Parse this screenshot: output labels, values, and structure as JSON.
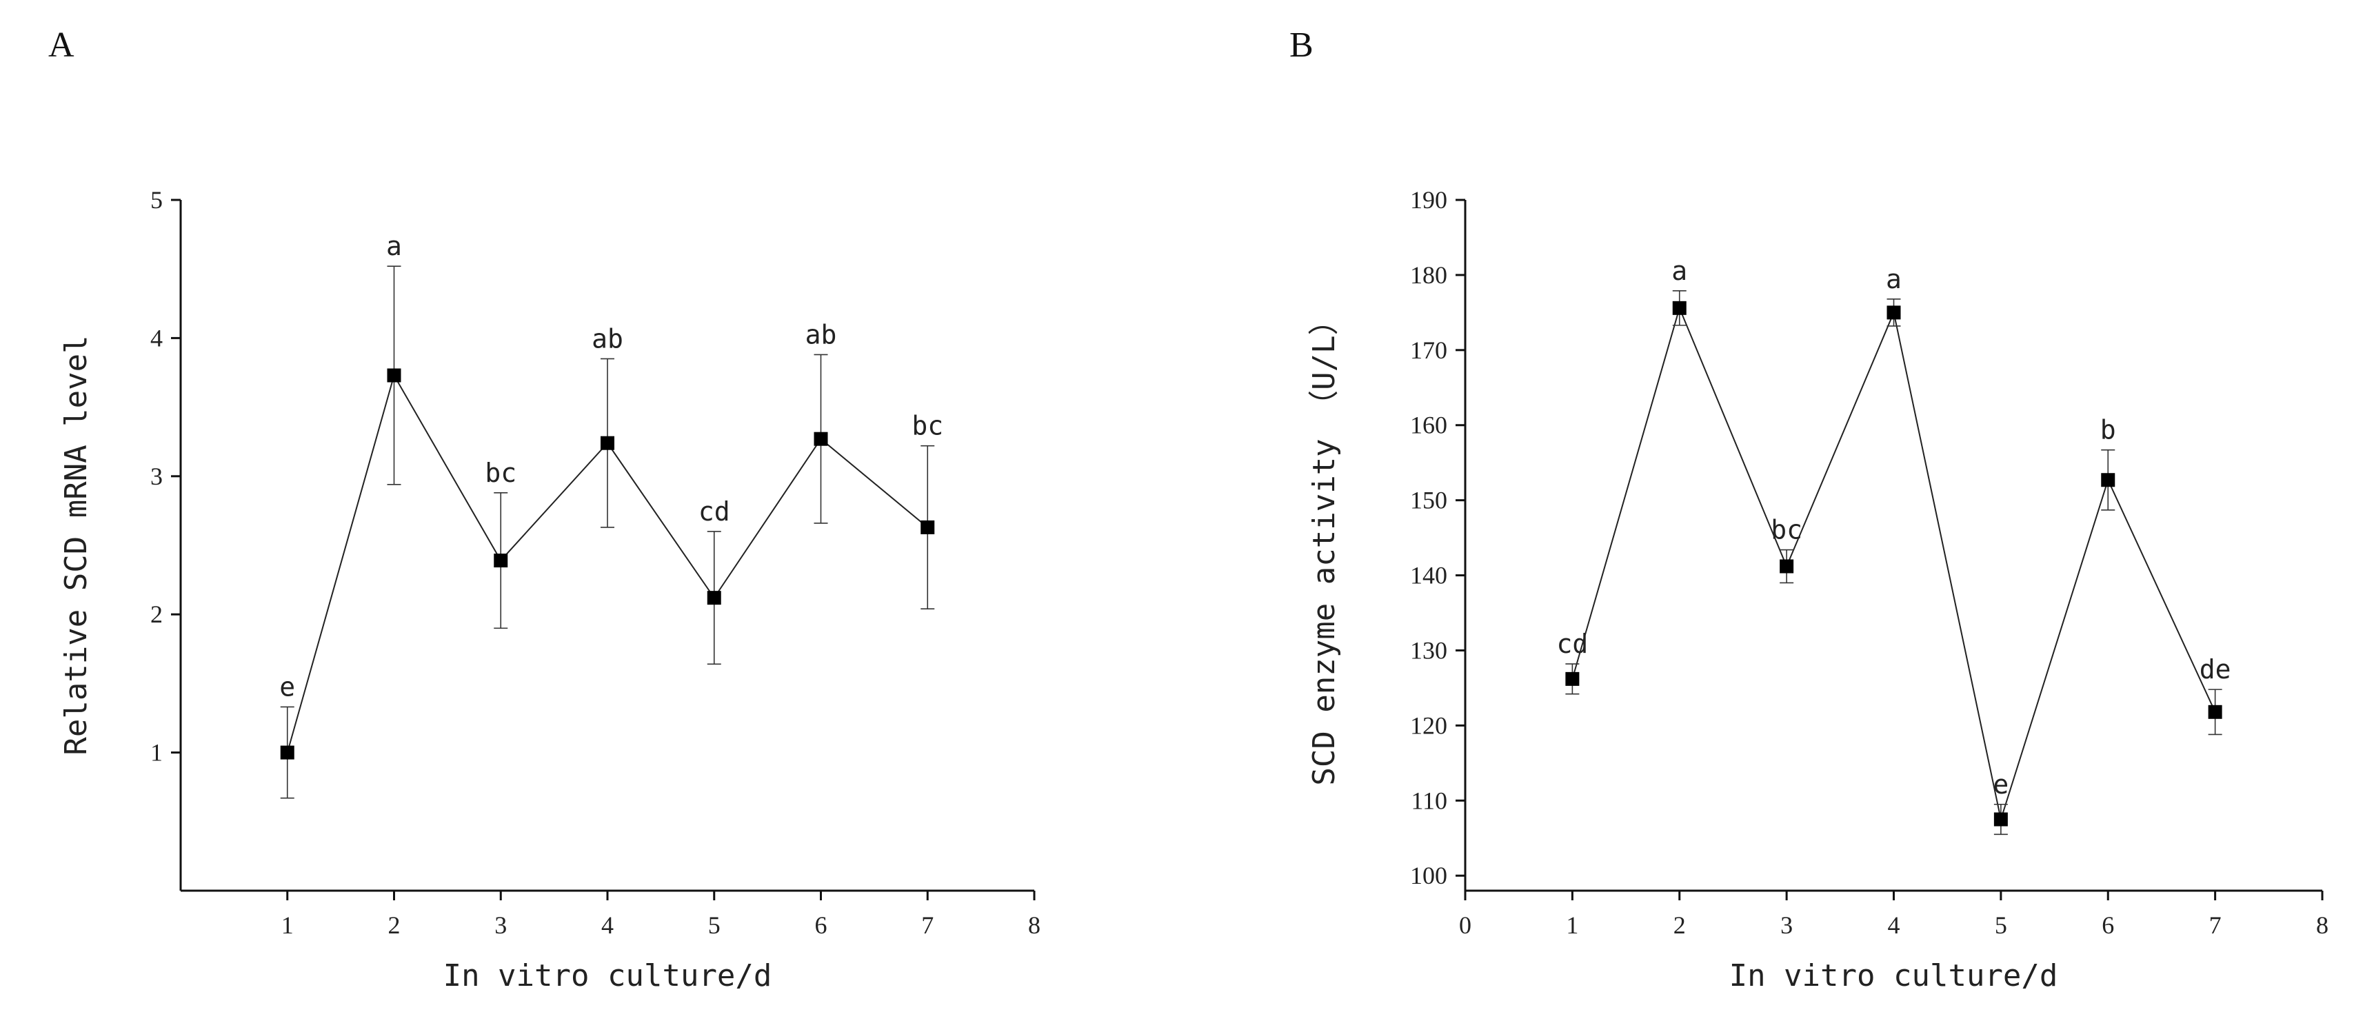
{
  "chart_data": [
    {
      "panel": "A",
      "type": "line",
      "xlabel": "In vitro culture/d",
      "ylabel": "Relative SCD mRNA level",
      "xlim": [
        0,
        8
      ],
      "ylim": [
        0,
        5
      ],
      "xticks": [
        "1",
        "2",
        "3",
        "4",
        "5",
        "6",
        "7",
        "8"
      ],
      "yticks": [
        "1",
        "2",
        "3",
        "4",
        "5"
      ],
      "x": [
        1,
        2,
        3,
        4,
        5,
        6,
        7
      ],
      "values": [
        1.0,
        3.73,
        2.39,
        3.24,
        2.12,
        3.27,
        2.63
      ],
      "errors": [
        0.33,
        0.79,
        0.49,
        0.61,
        0.48,
        0.61,
        0.59
      ],
      "labels": [
        "e",
        "a",
        "bc",
        "ab",
        "cd",
        "ab",
        "bc"
      ]
    },
    {
      "panel": "B",
      "type": "line",
      "xlabel": "In vitro culture/d",
      "ylabel": "SCD enzyme activity （U/L）",
      "xlim": [
        0,
        8
      ],
      "ylim": [
        98,
        190
      ],
      "xticks": [
        "0",
        "1",
        "2",
        "3",
        "4",
        "5",
        "6",
        "7",
        "8"
      ],
      "yticks": [
        "100",
        "110",
        "120",
        "130",
        "140",
        "150",
        "160",
        "170",
        "180",
        "190"
      ],
      "x": [
        1,
        2,
        3,
        4,
        5,
        6,
        7
      ],
      "values": [
        126.2,
        175.6,
        141.2,
        175.0,
        107.5,
        152.7,
        121.8
      ],
      "errors": [
        2.0,
        2.3,
        2.2,
        1.8,
        2.0,
        4.0,
        3.0
      ],
      "labels": [
        "cd",
        "a",
        "bc",
        "a",
        "e",
        "b",
        "de"
      ]
    }
  ]
}
